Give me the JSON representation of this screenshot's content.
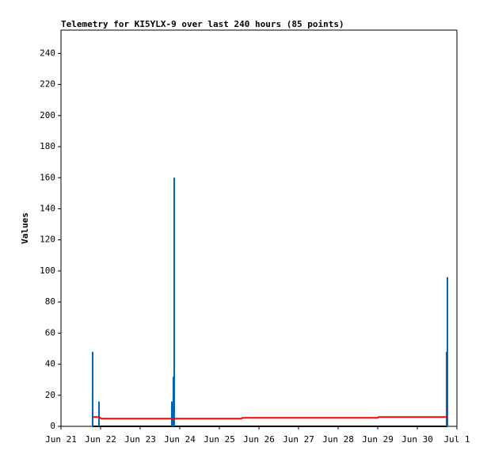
{
  "chart_data": {
    "type": "line",
    "title": "Telemetry for KI5YLX-9 over last 240 hours (85 points)",
    "y_label": "Values",
    "xlim": [
      0,
      10
    ],
    "xticks": [
      {
        "value": 0,
        "label": "Jun 21"
      },
      {
        "value": 1,
        "label": "Jun 22"
      },
      {
        "value": 2,
        "label": "Jun 23"
      },
      {
        "value": 3,
        "label": "Jun 24"
      },
      {
        "value": 4,
        "label": "Jun 25"
      },
      {
        "value": 5,
        "label": "Jun 26"
      },
      {
        "value": 6,
        "label": "Jun 27"
      },
      {
        "value": 7,
        "label": "Jun 28"
      },
      {
        "value": 8,
        "label": "Jun 29"
      },
      {
        "value": 9,
        "label": "Jun 30"
      },
      {
        "value": 10,
        "label": "Jul 1"
      }
    ],
    "ylim": [
      0,
      255
    ],
    "yticks": [
      0,
      20,
      40,
      60,
      80,
      100,
      120,
      140,
      160,
      180,
      200,
      220,
      240
    ],
    "series": [
      {
        "color": "#000000",
        "style": "line",
        "x": [
          0.8,
          9.76
        ],
        "values": [
          0,
          0
        ]
      },
      {
        "color": "#0066b3",
        "style": "impulses",
        "x": [
          0.8,
          0.96,
          2.8,
          2.84,
          2.86,
          9.74,
          9.76
        ],
        "values": [
          48,
          16,
          16,
          32,
          160,
          48,
          96
        ]
      },
      {
        "color": "#ff0000",
        "style": "line",
        "x": [
          0.8,
          0.96,
          1.02,
          4.56,
          4.58,
          8.0,
          8.02,
          9.76
        ],
        "values": [
          6,
          6,
          5,
          5,
          5.5,
          5.5,
          6,
          6
        ]
      }
    ]
  }
}
